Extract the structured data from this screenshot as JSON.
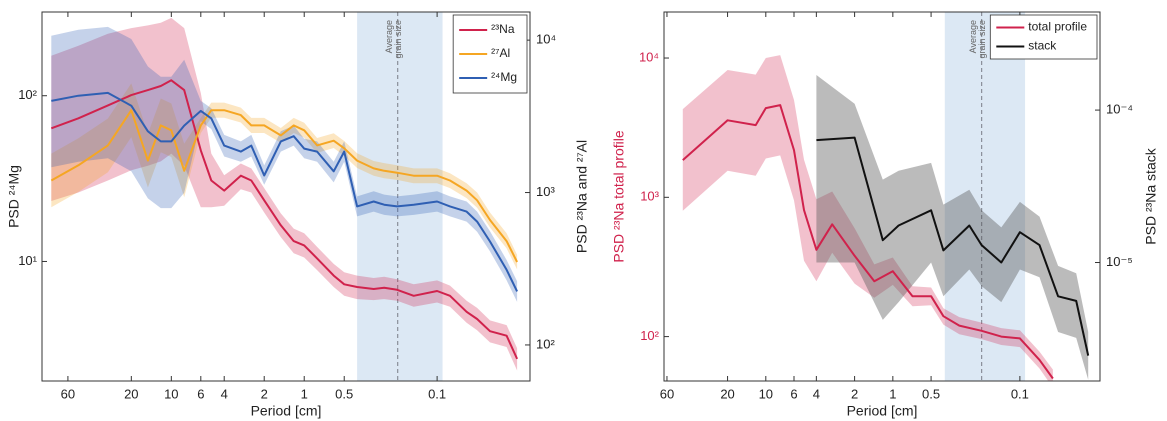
{
  "chart_data": [
    {
      "type": "line",
      "xlabel": "Period [cm]",
      "ylabel": "PSD ²⁴Mg",
      "y2label": "PSD ²³Na and ²⁷Al",
      "xscale": "log",
      "yscale": "log",
      "y2scale": "log",
      "xlim": [
        94,
        0.02
      ],
      "xticks": [
        60,
        20,
        10,
        6,
        4,
        2,
        1,
        0.5,
        0.1
      ],
      "ylim": [
        1.9,
        320
      ],
      "yticks": [
        {
          "value": 10,
          "label": "10¹"
        },
        {
          "value": 100,
          "label": "10²"
        }
      ],
      "y2lim": [
        58,
        15300
      ],
      "y2ticks": [
        {
          "value": 100,
          "label": "10²"
        },
        {
          "value": 1000,
          "label": "10³"
        },
        {
          "value": 10000,
          "label": "10⁴"
        }
      ],
      "legend": "upper right",
      "grain_band": [
        0.4,
        0.091
      ],
      "grain_band_color": "#dce8f4",
      "grain_size": 0.198,
      "annotation": [
        "Average",
        "grain size"
      ],
      "series": [
        {
          "name": "²³Na",
          "color": "#d0224c",
          "axis": "y2",
          "x": [
            80,
            50,
            30,
            20,
            15,
            12,
            10,
            8,
            6,
            5,
            4,
            3,
            2.5,
            2,
            1.5,
            1.2,
            1,
            0.8,
            0.6,
            0.5,
            0.4,
            0.3,
            0.25,
            0.2,
            0.15,
            0.1,
            0.08,
            0.06,
            0.05,
            0.04,
            0.03,
            0.025
          ],
          "values": [
            2640,
            3070,
            3730,
            4360,
            4700,
            5000,
            5450,
            4700,
            1890,
            1200,
            1030,
            1290,
            1200,
            890,
            610,
            480,
            450,
            370,
            285,
            250,
            240,
            233,
            237,
            230,
            210,
            226,
            210,
            165,
            148,
            123,
            115,
            81
          ],
          "upper": [
            7900,
            9200,
            11000,
            12000,
            12500,
            13000,
            14000,
            12000,
            4500,
            1800,
            1300,
            1550,
            1440,
            1070,
            730,
            580,
            540,
            440,
            340,
            300,
            285,
            275,
            280,
            270,
            250,
            265,
            245,
            195,
            175,
            145,
            135,
            95
          ],
          "lower": [
            880,
            1000,
            1200,
            1400,
            1500,
            1600,
            1800,
            1500,
            800,
            800,
            820,
            1050,
            1000,
            740,
            510,
            400,
            375,
            310,
            240,
            210,
            200,
            197,
            200,
            195,
            178,
            190,
            178,
            140,
            125,
            104,
            97,
            68
          ]
        },
        {
          "name": "²⁷Al",
          "color": "#f5a623",
          "axis": "y2",
          "x": [
            80,
            50,
            30,
            20,
            15,
            12,
            10,
            8,
            6,
            5,
            4,
            3,
            2.5,
            2,
            1.5,
            1.2,
            1,
            0.8,
            0.6,
            0.5,
            0.4,
            0.3,
            0.25,
            0.2,
            0.15,
            0.1,
            0.08,
            0.06,
            0.05,
            0.04,
            0.03,
            0.025
          ],
          "values": [
            1200,
            1510,
            2040,
            3470,
            1620,
            2760,
            2560,
            1390,
            2760,
            3470,
            3470,
            3220,
            2760,
            2760,
            2370,
            2760,
            2560,
            2040,
            2190,
            1950,
            1620,
            1440,
            1390,
            1350,
            1290,
            1290,
            1200,
            1030,
            890,
            660,
            480,
            350
          ],
          "upper": [
            1800,
            2270,
            3060,
            5200,
            2430,
            4140,
            3840,
            2090,
            3090,
            3890,
            3890,
            3610,
            3090,
            3090,
            2650,
            3090,
            2870,
            2280,
            2450,
            2180,
            1810,
            1610,
            1560,
            1510,
            1440,
            1440,
            1340,
            1150,
            1000,
            740,
            540,
            390
          ],
          "lower": [
            800,
            1010,
            1360,
            2310,
            1080,
            1840,
            1710,
            930,
            2460,
            3100,
            3100,
            2880,
            2460,
            2460,
            2120,
            2460,
            2290,
            1820,
            1960,
            1740,
            1450,
            1290,
            1240,
            1210,
            1150,
            1150,
            1070,
            920,
            795,
            590,
            430,
            313
          ]
        },
        {
          "name": "²⁴Mg",
          "color": "#2f5fb3",
          "axis": "y",
          "x": [
            80,
            50,
            30,
            20,
            15,
            12,
            10,
            8,
            6,
            5,
            4,
            3,
            2.5,
            2,
            1.5,
            1.2,
            1,
            0.8,
            0.6,
            0.5,
            0.4,
            0.3,
            0.25,
            0.2,
            0.15,
            0.1,
            0.08,
            0.06,
            0.05,
            0.04,
            0.03,
            0.025
          ],
          "values": [
            93,
            100,
            104,
            87,
            61,
            53,
            53,
            66,
            81,
            73,
            50,
            46,
            50,
            33,
            53,
            57,
            48,
            46,
            35,
            46,
            21.5,
            23,
            22,
            21.5,
            22,
            23,
            21.5,
            20,
            17.4,
            13.2,
            8.9,
            6.6
          ],
          "upper": [
            230,
            250,
            260,
            220,
            150,
            130,
            130,
            165,
            93,
            84,
            58,
            53,
            58,
            38,
            61,
            66,
            55,
            53,
            40,
            53,
            24.7,
            26.5,
            25.3,
            24.7,
            25.3,
            26.5,
            24.7,
            23,
            20,
            15.2,
            10.2,
            7.6
          ],
          "lower": [
            37,
            40,
            42,
            35,
            24,
            21,
            21,
            26,
            70,
            63,
            43,
            40,
            43,
            29,
            46,
            50,
            42,
            40,
            30,
            40,
            18.7,
            20,
            19.1,
            18.7,
            19.1,
            20,
            18.7,
            17.4,
            15.1,
            11.5,
            7.7,
            5.7
          ]
        }
      ]
    },
    {
      "type": "line",
      "xlabel": "Period [cm]",
      "ylabel": "PSD ²³Na total profile",
      "y2label": "PSD ²³Na stack",
      "ylabel_color": "#d0224c",
      "xscale": "log",
      "yscale": "log",
      "y2scale": "log",
      "xlim": [
        63.3,
        0.0234
      ],
      "xticks": [
        60,
        20,
        10,
        6,
        4,
        2,
        1,
        0.5,
        0.1
      ],
      "ylim": [
        48,
        21400
      ],
      "yticks": [
        {
          "value": 100,
          "label": "10²"
        },
        {
          "value": 1000,
          "label": "10³"
        },
        {
          "value": 10000,
          "label": "10⁴"
        }
      ],
      "y2lim": [
        1.67e-06,
        0.00044
      ],
      "y2ticks": [
        {
          "value": 1e-05,
          "label": "10⁻⁵"
        },
        {
          "value": 0.0001,
          "label": "10⁻⁴"
        }
      ],
      "legend": "upper right",
      "grain_band": [
        0.39,
        0.091
      ],
      "grain_band_color": "#dce8f4",
      "grain_size": 0.2,
      "annotation": [
        "Average",
        "grain size"
      ],
      "series": [
        {
          "name": "total profile",
          "color": "#d0224c",
          "axis": "y",
          "x": [
            45,
            20,
            12,
            10,
            7.7,
            6,
            5,
            4,
            3,
            2,
            1.4,
            1,
            0.7,
            0.5,
            0.4,
            0.3,
            0.2,
            0.14,
            0.1,
            0.07,
            0.055
          ],
          "values": [
            1850,
            3570,
            3300,
            4370,
            4590,
            2180,
            810,
            420,
            640,
            380,
            250,
            295,
            195,
            195,
            140,
            120,
            110,
            100,
            97,
            68,
            50
          ],
          "upper": [
            4300,
            8200,
            7600,
            10000,
            10500,
            5000,
            1860,
            970,
            1100,
            600,
            330,
            370,
            230,
            225,
            160,
            138,
            126,
            115,
            111,
            78,
            58
          ],
          "lower": [
            800,
            1550,
            1430,
            1900,
            2000,
            950,
            350,
            250,
            400,
            240,
            190,
            235,
            165,
            168,
            122,
            104,
            96,
            87,
            84,
            59,
            43
          ]
        },
        {
          "name": "stack",
          "color": "#111111",
          "band_color": "#555555",
          "axis": "y2",
          "x": [
            4,
            2,
            1.2,
            0.9,
            0.5,
            0.4,
            0.25,
            0.2,
            0.14,
            0.1,
            0.07,
            0.05,
            0.036,
            0.029
          ],
          "values": [
            6.35e-05,
            6.6e-05,
            1.4e-05,
            1.75e-05,
            2.2e-05,
            1.2e-05,
            1.75e-05,
            1.3e-05,
            1e-05,
            1.58e-05,
            1.3e-05,
            6e-06,
            5.6e-06,
            2.45e-06
          ],
          "upper": [
            0.00017,
            0.00011,
            3.5e-05,
            4e-05,
            4.5e-05,
            2.4e-05,
            3e-05,
            2.2e-05,
            1.7e-05,
            2.5e-05,
            2e-05,
            9.5e-06,
            8.5e-06,
            3.5e-06
          ],
          "lower": [
            1e-05,
            1e-05,
            4.2e-06,
            5.5e-06,
            1e-05,
            6e-06,
            9e-06,
            7e-06,
            5.5e-06,
            9e-06,
            8e-06,
            3.5e-06,
            3.2e-06,
            1.7e-06
          ]
        }
      ]
    }
  ]
}
